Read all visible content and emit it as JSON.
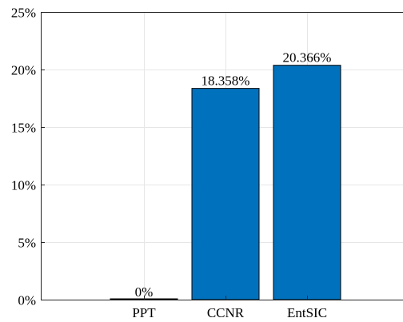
{
  "chart_data": {
    "type": "bar",
    "categories": [
      "PPT",
      "CCNR",
      "EntSIC"
    ],
    "values": [
      0,
      18.358,
      20.366
    ],
    "data_labels": [
      "0%",
      "18.358%",
      "20.366%"
    ],
    "ylim": [
      0,
      25
    ],
    "yticks": [
      0,
      5,
      10,
      15,
      20,
      25
    ],
    "ytick_labels": [
      "0%",
      "5%",
      "10%",
      "15%",
      "20%",
      "25%"
    ],
    "grid": true,
    "bar_color": "#0072BD",
    "title": "",
    "xlabel": "",
    "ylabel": ""
  }
}
